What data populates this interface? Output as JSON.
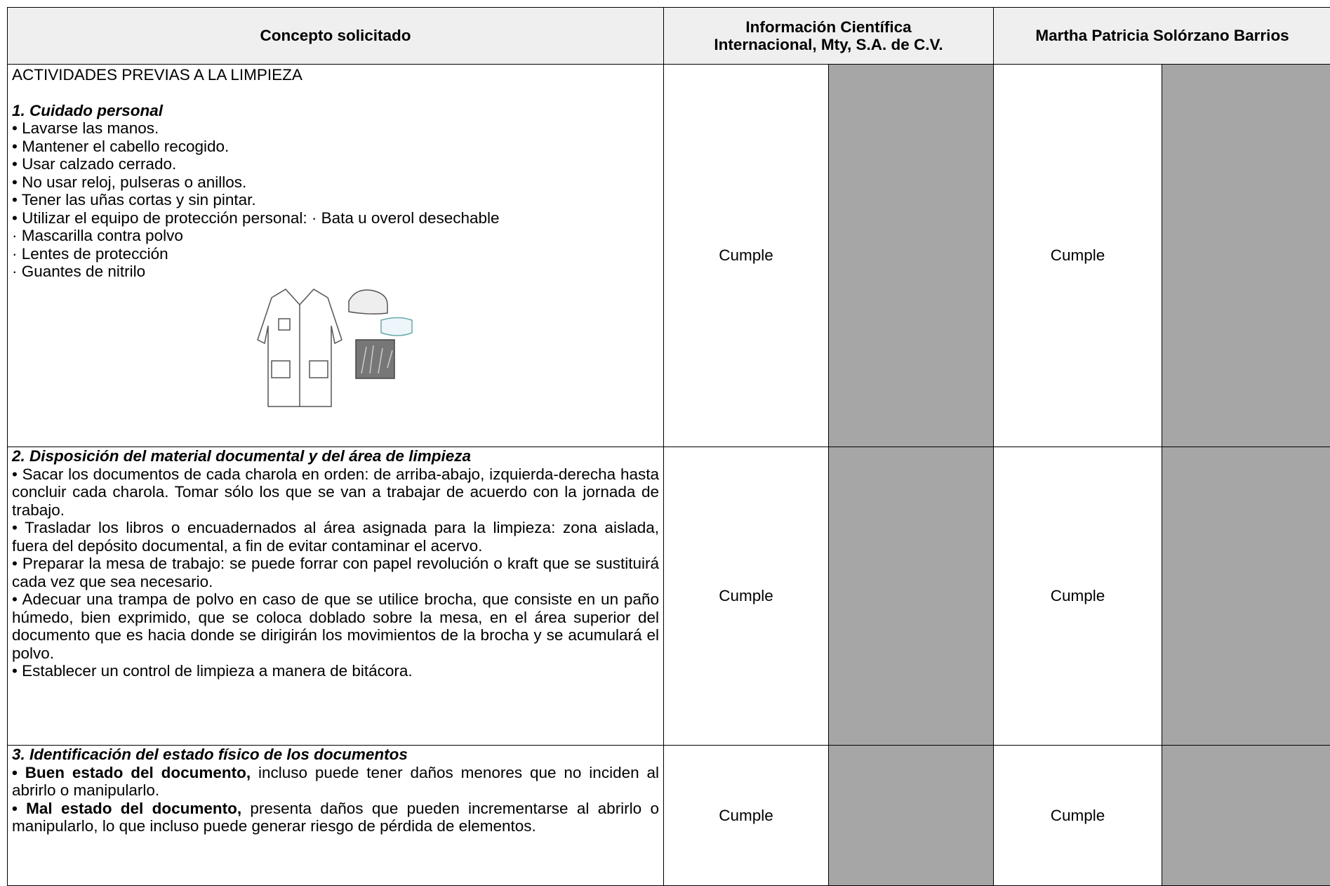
{
  "header": {
    "concept": "Concepto solicitado",
    "provider_1": [
      "Información Científica",
      "Internacional, Mty, S.A. de C.V."
    ],
    "provider_2": "Martha Patricia Solórzano Barrios"
  },
  "rows": [
    {
      "section": "ACTIVIDADES PREVIAS A LA LIMPIEZA",
      "heading": "1. Cuidado personal",
      "items": [
        "• Lavarse las manos.",
        "• Mantener el cabello recogido.",
        "• Usar calzado cerrado.",
        "• No usar reloj, pulseras o anillos.",
        "• Tener las uñas cortas y sin pintar.",
        "• Utilizar el equipo de protección personal: · Bata u overol desechable",
        "· Mascarilla contra polvo",
        "· Lentes de protección",
        "· Guantes de nitrilo"
      ],
      "result_1": "Cumple",
      "result_2": "Cumple"
    },
    {
      "heading": "2. Disposición del material documental y del área de limpieza",
      "items": [
        "• Sacar los documentos de cada charola en orden: de arriba-abajo, izquierda-derecha hasta concluir cada charola. Tomar sólo los que se van a trabajar de acuerdo con la jornada de trabajo.",
        "• Trasladar los libros o encuadernados al área asignada para la limpieza: zona aislada, fuera del depósito documental, a fin de evitar contaminar el acervo.",
        "• Preparar la mesa de trabajo: se puede forrar con papel revolución o kraft que se sustituirá cada vez que sea necesario.",
        "• Adecuar una trampa de polvo en caso de que se utilice brocha, que consiste en un paño húmedo, bien exprimido, que se coloca doblado sobre la mesa, en el área superior del documento que es hacia donde se dirigirán los movimientos de la brocha y se acumulará el polvo.",
        "• Establecer un control de limpieza a manera de bitácora."
      ],
      "result_1": "Cumple",
      "result_2": "Cumple"
    },
    {
      "heading": "3. Identificación del estado físico de los documentos",
      "items": [
        {
          "bold": "• Buen estado del documento,",
          "text": " incluso puede tener daños menores que no inciden al abrirlo o manipularlo."
        },
        {
          "bold": "• Mal estado del documento,",
          "text": " presenta daños que pueden incrementarse al abrirlo o manipularlo, lo que incluso puede generar riesgo de pérdida de elementos."
        }
      ],
      "result_1": "Cumple",
      "result_2": "Cumple"
    }
  ]
}
